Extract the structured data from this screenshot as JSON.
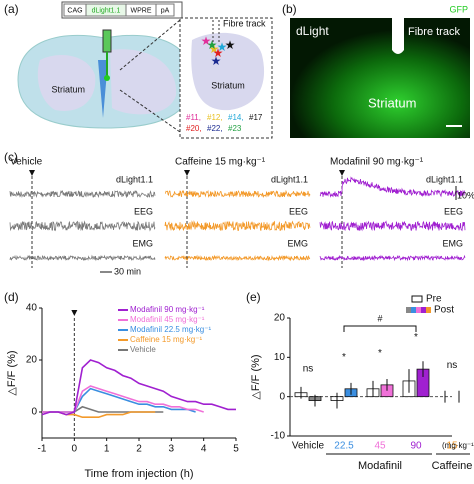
{
  "panel_a": {
    "label": "(a)",
    "construct": [
      "CAG",
      "dLight1.1",
      "WPRE",
      "pA"
    ],
    "striatum": "Striatum",
    "fibre_track": "Fibre track",
    "striatum_inset": "Striatum",
    "mice": [
      {
        "label": "#11,",
        "color": "#e0309a"
      },
      {
        "label": "#12,",
        "color": "#e8c020"
      },
      {
        "label": "#14,",
        "color": "#20a8d8"
      },
      {
        "label": "#17",
        "color": "#111111"
      },
      {
        "label": "#20,",
        "color": "#e02020"
      },
      {
        "label": "#22,",
        "color": "#1a2a90"
      },
      {
        "label": "#23",
        "color": "#20a040"
      }
    ]
  },
  "panel_b": {
    "label": "(b)",
    "stain": "GFP",
    "sensor": "dLight",
    "fibre_track": "Fibre track",
    "region": "Striatum"
  },
  "panel_c": {
    "label": "(c)",
    "columns": [
      {
        "title": "Vehicle",
        "color": "#7a7a7a"
      },
      {
        "title": "Caffeine 15 mg·kg⁻¹",
        "color": "#f39a2b"
      },
      {
        "title": "Modafinil 90 mg·kg⁻¹",
        "color": "#a020d0"
      }
    ],
    "channels": [
      "dLight1.1",
      "EEG",
      "EMG"
    ],
    "time_scale": "30 min",
    "amp_scale": "10%"
  },
  "chart_data": [
    {
      "type": "line",
      "panel_label": "(d)",
      "xlabel": "Time from injection (h)",
      "ylabel": "△F/F (%)",
      "x": [
        -1,
        -0.75,
        -0.5,
        -0.25,
        0,
        0.25,
        0.5,
        0.75,
        1,
        1.25,
        1.5,
        1.75,
        2,
        2.25,
        2.5,
        2.75,
        3,
        3.25,
        3.5,
        3.75,
        4,
        4.25,
        4.5,
        4.75,
        5
      ],
      "xlim": [
        -1,
        5
      ],
      "ylim": [
        -10,
        40
      ],
      "xticks": [
        -1,
        0,
        1,
        2,
        3,
        4,
        5
      ],
      "yticks": [
        0,
        20,
        40
      ],
      "series": [
        {
          "name": "Modafinil 90 mg·kg⁻¹",
          "color": "#a020d0",
          "values": [
            -1,
            0,
            0,
            -1,
            0,
            17,
            20,
            19,
            17,
            16,
            14,
            13,
            11,
            10,
            9,
            8,
            6,
            5,
            4,
            4,
            3,
            3,
            2,
            1,
            1
          ]
        },
        {
          "name": "Modafinil 45 mg·kg⁻¹",
          "color": "#f070d8",
          "values": [
            0,
            0,
            0,
            0,
            0,
            8,
            10,
            9,
            8,
            7,
            6,
            5,
            4,
            4,
            3,
            3,
            2,
            2,
            1,
            1,
            0,
            null,
            null,
            null,
            null
          ]
        },
        {
          "name": "Modafinil 22.5 mg·kg⁻¹",
          "color": "#3a8ee0",
          "values": [
            0,
            0,
            0,
            0,
            0,
            6,
            9,
            8,
            7,
            6,
            5,
            4,
            3,
            3,
            2,
            2,
            1,
            1,
            1,
            0,
            null,
            null,
            null,
            null,
            null
          ]
        },
        {
          "name": "Caffeine 15 mg·kg⁻¹",
          "color": "#f39a2b",
          "values": [
            0,
            0,
            0,
            -1,
            -1,
            -2,
            -2,
            -2,
            -1,
            -1,
            -1,
            0,
            0,
            0,
            0,
            null,
            null,
            null,
            null,
            null,
            null,
            null,
            null,
            null,
            null
          ]
        },
        {
          "name": "Vehicle",
          "color": "#777777",
          "values": [
            0,
            0,
            0,
            0,
            0,
            2,
            1,
            0,
            0,
            0,
            0,
            0,
            0,
            0,
            0,
            0,
            null,
            null,
            null,
            null,
            null,
            null,
            null,
            null,
            null
          ]
        }
      ]
    },
    {
      "type": "bar",
      "panel_label": "(e)",
      "ylabel": "△F/F (%)",
      "categories": [
        "Vehicle",
        "22.5",
        "45",
        "90",
        "15"
      ],
      "category_colors": [
        "#111111",
        "#3a8ee0",
        "#f070d8",
        "#a020d0",
        "#f39a2b"
      ],
      "ylim": [
        -10,
        20
      ],
      "yticks": [
        -10,
        0,
        10,
        20
      ],
      "series": [
        {
          "name": "Pre",
          "color": "#ffffff",
          "values": [
            1,
            -1,
            2,
            4,
            0
          ],
          "errors": [
            1.5,
            2,
            2,
            3,
            1.5
          ]
        },
        {
          "name": "Post",
          "colors": [
            "#888888",
            "#3a8ee0",
            "#f070d8",
            "#a020d0",
            "#f39a2b"
          ],
          "values": [
            -1,
            2,
            3,
            7,
            0
          ],
          "errors": [
            1.5,
            1.5,
            1.5,
            2,
            1.5
          ]
        }
      ],
      "annotations": [
        "ns",
        "*",
        "*",
        "*",
        "ns"
      ],
      "bracket": "#",
      "group_labels": [
        "Modafinil",
        "Caffeine"
      ],
      "unit": "(mg·kg⁻¹)"
    }
  ]
}
